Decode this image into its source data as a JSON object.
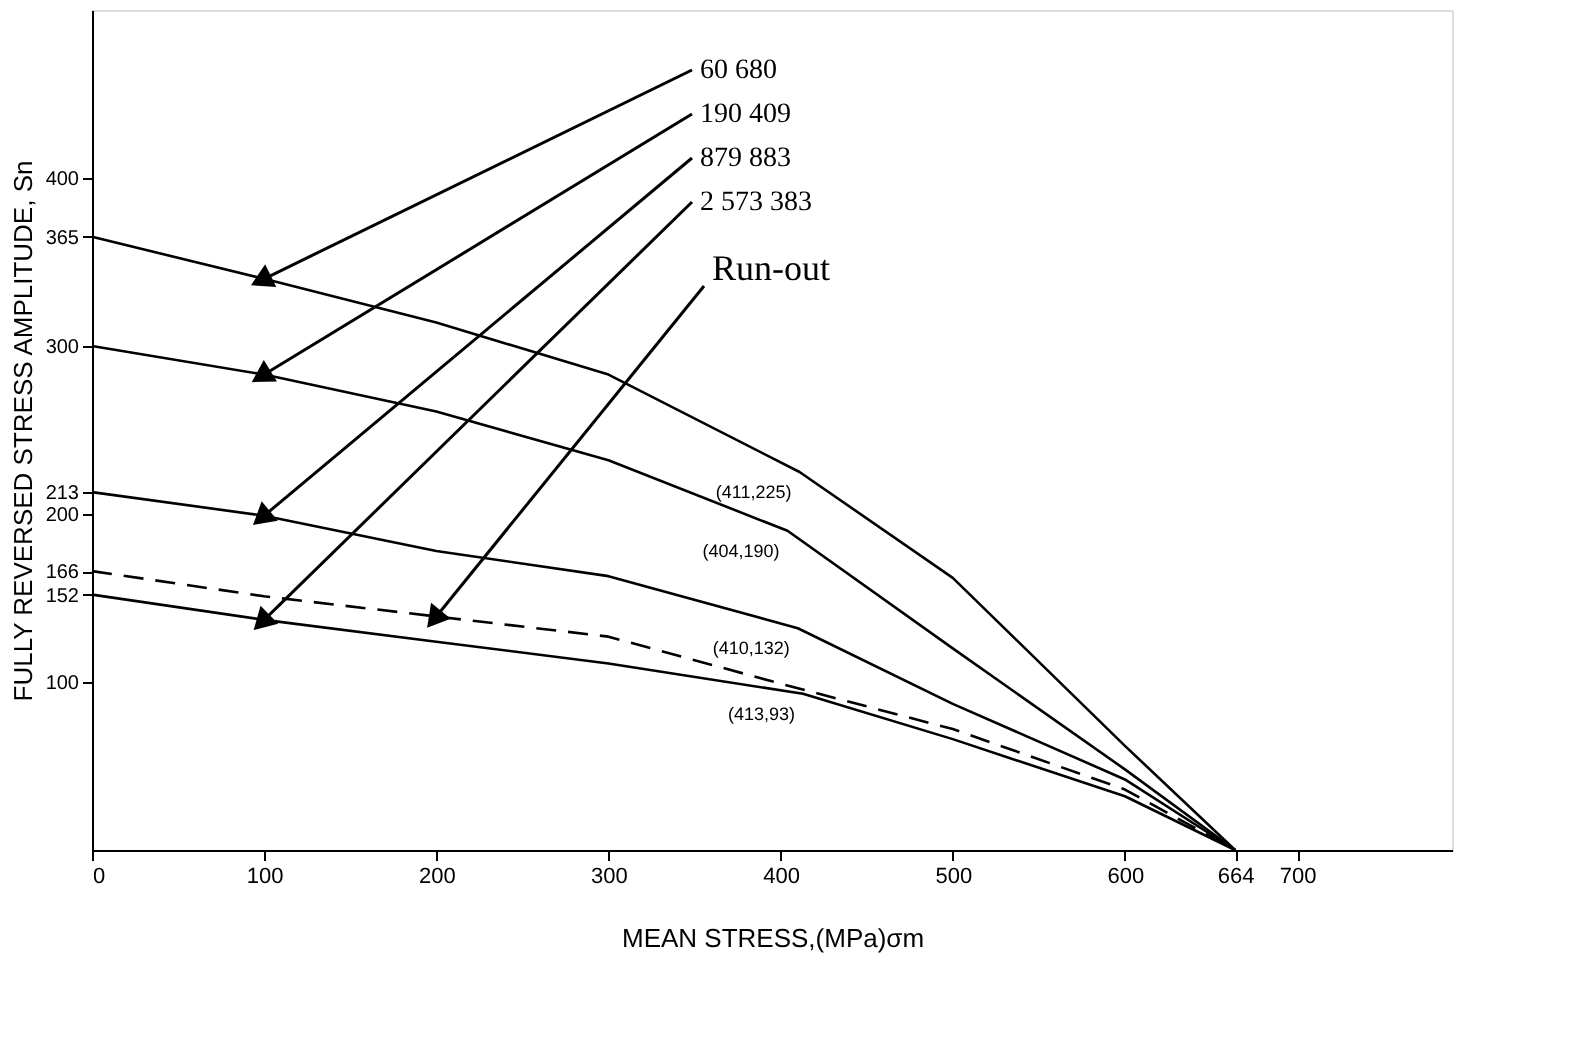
{
  "chart_data": {
    "type": "line",
    "xlabel": "MEAN STRESS,(MPa)σm",
    "ylabel": "FULLY REVERSED STRESS AMPLITUDE, Sn",
    "xlim": [
      0,
      790
    ],
    "ylim": [
      0,
      500
    ],
    "xticks": [
      0,
      100,
      200,
      300,
      400,
      500,
      600,
      664,
      700
    ],
    "yticks": [
      100,
      152,
      166,
      200,
      213,
      300,
      365,
      400
    ],
    "grid": false,
    "legend": false,
    "series": [
      {
        "name": "60 680",
        "color": "#000000",
        "line_style": "solid",
        "x": [
          0,
          100,
          200,
          300,
          411,
          500,
          600,
          664
        ],
        "values": [
          365,
          340,
          314,
          283,
          225,
          162,
          62,
          0
        ]
      },
      {
        "name": "190 409",
        "color": "#000000",
        "line_style": "solid",
        "x": [
          0,
          100,
          200,
          300,
          404,
          500,
          600,
          664
        ],
        "values": [
          300,
          283,
          261,
          232,
          190,
          120,
          48,
          0
        ]
      },
      {
        "name": "879 883",
        "color": "#000000",
        "line_style": "solid",
        "x": [
          0,
          100,
          200,
          300,
          410,
          500,
          600,
          664
        ],
        "values": [
          213,
          199,
          178,
          163,
          132,
          87,
          42,
          0
        ]
      },
      {
        "name": "2 573 383",
        "color": "#000000",
        "line_style": "solid",
        "x": [
          0,
          100,
          200,
          300,
          413,
          500,
          600,
          664
        ],
        "values": [
          152,
          137,
          124,
          111,
          93,
          66,
          32,
          0
        ]
      },
      {
        "name": "Run-out",
        "color": "#000000",
        "line_style": "dashed",
        "x": [
          0,
          100,
          200,
          300,
          400,
          500,
          600,
          664
        ],
        "values": [
          166,
          151,
          139,
          127,
          99,
          72,
          36,
          0
        ]
      }
    ],
    "annotations": [
      {
        "text": "(411,225)",
        "x": 411,
        "y": 225
      },
      {
        "text": "(404,190)",
        "x": 404,
        "y": 190
      },
      {
        "text": "(410,132)",
        "x": 410,
        "y": 132
      },
      {
        "text": "(413,93)",
        "x": 413,
        "y": 93
      }
    ]
  }
}
